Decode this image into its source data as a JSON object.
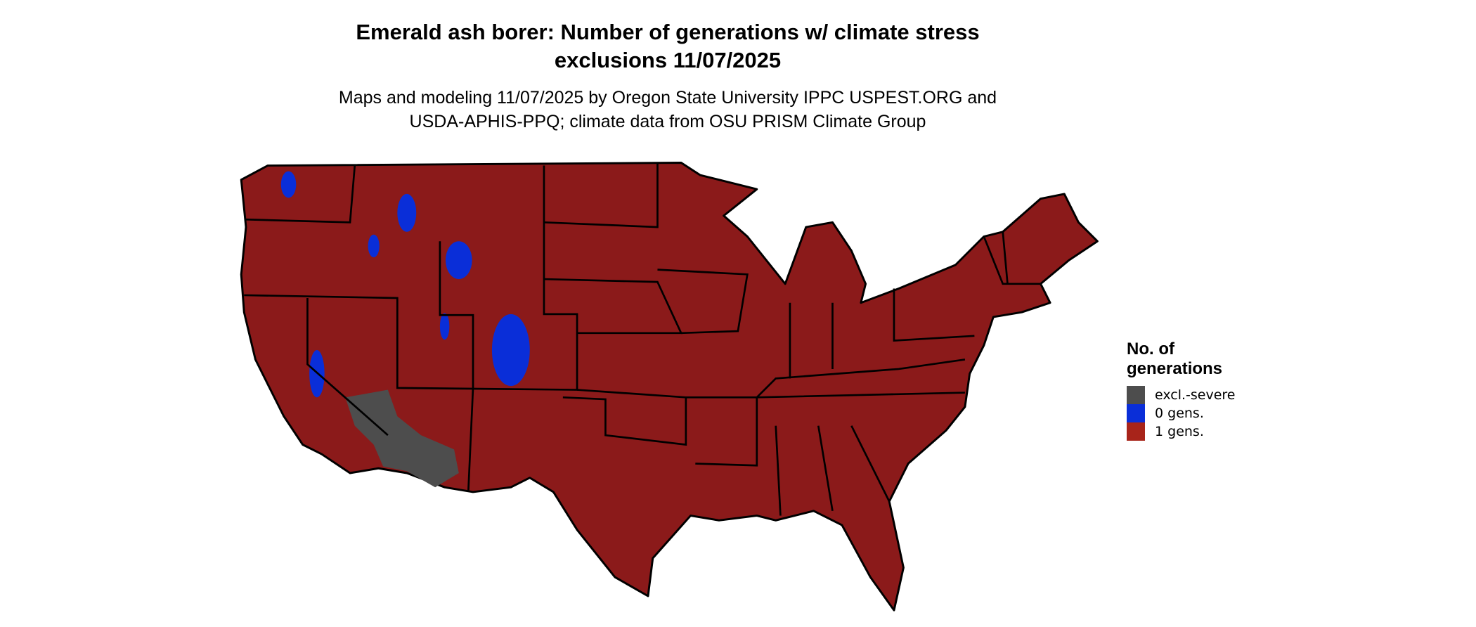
{
  "title": {
    "line1": "Emerald ash borer: Number of generations w/ climate stress",
    "line2": "exclusions 11/07/2025"
  },
  "subtitle": {
    "line1": "Maps and modeling 11/07/2025 by Oregon State University IPPC USPEST.ORG and",
    "line2": "USDA-APHIS-PPQ; climate data from OSU PRISM Climate Group"
  },
  "legend": {
    "title_line1": "No. of",
    "title_line2": "generations",
    "items": [
      {
        "label": "excl.-severe",
        "color": "#4D4D4D"
      },
      {
        "label": "0 gens.",
        "color": "#0A2ED8"
      },
      {
        "label": "1 gens.",
        "color": "#A8241A"
      }
    ]
  },
  "map": {
    "region": "Contiguous United States",
    "dominant_class": "1 gens.",
    "land_color": "#8B1A1A",
    "border_color": "#000000"
  }
}
